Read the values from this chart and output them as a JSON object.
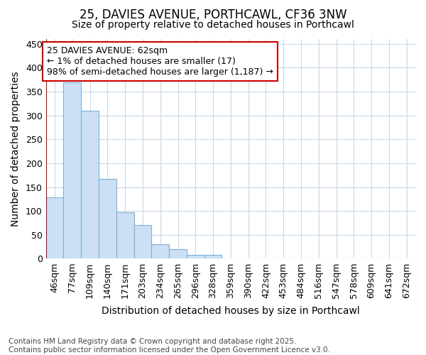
{
  "title1": "25, DAVIES AVENUE, PORTHCAWL, CF36 3NW",
  "title2": "Size of property relative to detached houses in Porthcawl",
  "xlabel": "Distribution of detached houses by size in Porthcawl",
  "ylabel": "Number of detached properties",
  "categories": [
    "46sqm",
    "77sqm",
    "109sqm",
    "140sqm",
    "171sqm",
    "203sqm",
    "234sqm",
    "265sqm",
    "296sqm",
    "328sqm",
    "359sqm",
    "390sqm",
    "422sqm",
    "453sqm",
    "484sqm",
    "516sqm",
    "547sqm",
    "578sqm",
    "609sqm",
    "641sqm",
    "672sqm"
  ],
  "values": [
    128,
    370,
    310,
    167,
    97,
    70,
    30,
    20,
    8,
    8,
    0,
    0,
    0,
    0,
    0,
    0,
    0,
    0,
    0,
    0,
    0
  ],
  "bar_color": "#cce0f5",
  "bar_edge_color": "#7ab0d8",
  "bar_linewidth": 0.8,
  "red_line_x": -0.5,
  "red_line_color": "#cc0000",
  "annotation_text": "25 DAVIES AVENUE: 62sqm\n← 1% of detached houses are smaller (17)\n98% of semi-detached houses are larger (1,187) →",
  "annotation_box_facecolor": "#ffffff",
  "annotation_edge_color": "#cc0000",
  "ylim": [
    0,
    460
  ],
  "yticks": [
    0,
    50,
    100,
    150,
    200,
    250,
    300,
    350,
    400,
    450
  ],
  "background_color": "#ffffff",
  "grid_color": "#c8d8ea",
  "footer_line1": "Contains HM Land Registry data © Crown copyright and database right 2025.",
  "footer_line2": "Contains public sector information licensed under the Open Government Licence v3.0.",
  "title_fontsize": 12,
  "subtitle_fontsize": 10,
  "axis_label_fontsize": 10,
  "tick_fontsize": 9,
  "annotation_fontsize": 9,
  "footer_fontsize": 7.5
}
